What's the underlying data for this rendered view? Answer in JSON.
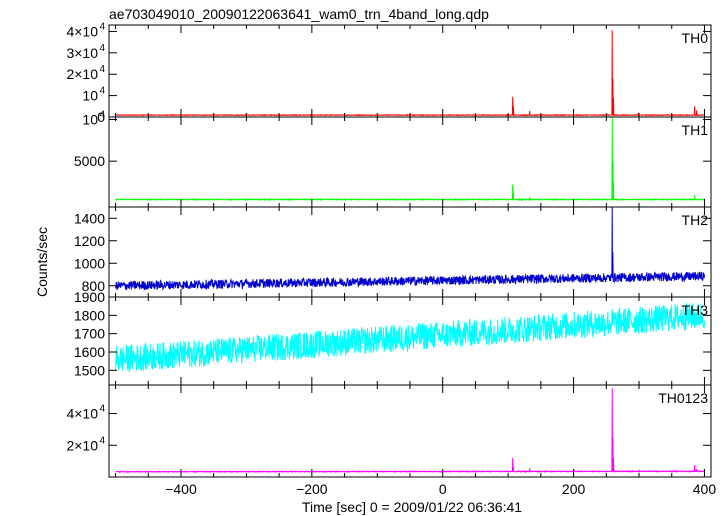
{
  "chart_data": {
    "type": "line",
    "title": "ae703049010_20090122063641_wam0_trn_4band_long.qdp",
    "xlabel": "Time [sec] 0 = 2009/01/22 06:36:41",
    "ylabel": "Counts/sec",
    "xlim": [
      -510,
      410
    ],
    "x_ticks": [
      -400,
      -200,
      0,
      200,
      400
    ],
    "x_tick_labels": [
      "−400",
      "−200",
      "0",
      "200",
      "400"
    ],
    "grid": false,
    "panels": [
      {
        "name": "TH0",
        "color": "#ff0000",
        "ylim": [
          0,
          43000
        ],
        "ticks": [
          {
            "value": 0,
            "mant": "0",
            "exp": ""
          },
          {
            "value": 10000,
            "mant": "10",
            "exp": "4"
          },
          {
            "value": 20000,
            "mant": "2×10",
            "exp": "4"
          },
          {
            "value": 30000,
            "mant": "3×10",
            "exp": "4"
          },
          {
            "value": 40000,
            "mant": "4×10",
            "exp": "4"
          }
        ],
        "baseline": 900,
        "noise": 150,
        "trend": 0,
        "spikes": [
          [
            107,
            9500
          ],
          [
            108,
            5000
          ],
          [
            133,
            2800
          ],
          [
            161,
            900
          ],
          [
            259,
            40500
          ],
          [
            260,
            18000
          ],
          [
            261,
            9000
          ],
          [
            299,
            2000
          ],
          [
            385,
            5000
          ],
          [
            388,
            3000
          ]
        ]
      },
      {
        "name": "TH1",
        "color": "#00ff00",
        "ylim": [
          -500,
          10300
        ],
        "ticks": [
          {
            "value": 5000,
            "mant": "5000",
            "exp": ""
          },
          {
            "value": 10000,
            "mant": "10",
            "exp": "4"
          }
        ],
        "baseline": 400,
        "noise": 50,
        "trend": 0,
        "spikes": [
          [
            107,
            2200
          ],
          [
            108,
            1200
          ],
          [
            133,
            700
          ],
          [
            259,
            10200
          ],
          [
            260,
            5000
          ],
          [
            261,
            2500
          ],
          [
            385,
            900
          ]
        ]
      },
      {
        "name": "TH2",
        "color": "#0000cd",
        "ylim": [
          700,
          1500
        ],
        "ticks": [
          {
            "value": 800,
            "mant": "800",
            "exp": ""
          },
          {
            "value": 1000,
            "mant": "1000",
            "exp": ""
          },
          {
            "value": 1200,
            "mant": "1200",
            "exp": ""
          },
          {
            "value": 1400,
            "mant": "1400",
            "exp": ""
          }
        ],
        "baseline": 800,
        "noise": 40,
        "trend": 85,
        "spikes": [
          [
            259,
            1500
          ],
          [
            260,
            1100
          ]
        ]
      },
      {
        "name": "TH3",
        "color": "#00ffff",
        "ylim": [
          1420,
          1900
        ],
        "ticks": [
          {
            "value": 1500,
            "mant": "1500",
            "exp": ""
          },
          {
            "value": 1600,
            "mant": "1600",
            "exp": ""
          },
          {
            "value": 1700,
            "mant": "1700",
            "exp": ""
          },
          {
            "value": 1800,
            "mant": "1800",
            "exp": ""
          },
          {
            "value": 1900,
            "mant": "1900",
            "exp": ""
          }
        ],
        "baseline": 1560,
        "noise": 75,
        "trend": 240,
        "spikes": []
      },
      {
        "name": "TH0123",
        "color": "#ff00ff",
        "ylim": [
          0,
          58000
        ],
        "ticks": [
          {
            "value": 20000,
            "mant": "2×10",
            "exp": "4"
          },
          {
            "value": 40000,
            "mant": "4×10",
            "exp": "4"
          }
        ],
        "baseline": 3300,
        "noise": 250,
        "trend": 300,
        "spikes": [
          [
            107,
            12000
          ],
          [
            108,
            6000
          ],
          [
            133,
            5500
          ],
          [
            259,
            56000
          ],
          [
            260,
            25000
          ],
          [
            261,
            12000
          ],
          [
            300,
            4500
          ],
          [
            385,
            7500
          ],
          [
            388,
            5000
          ]
        ]
      }
    ]
  }
}
